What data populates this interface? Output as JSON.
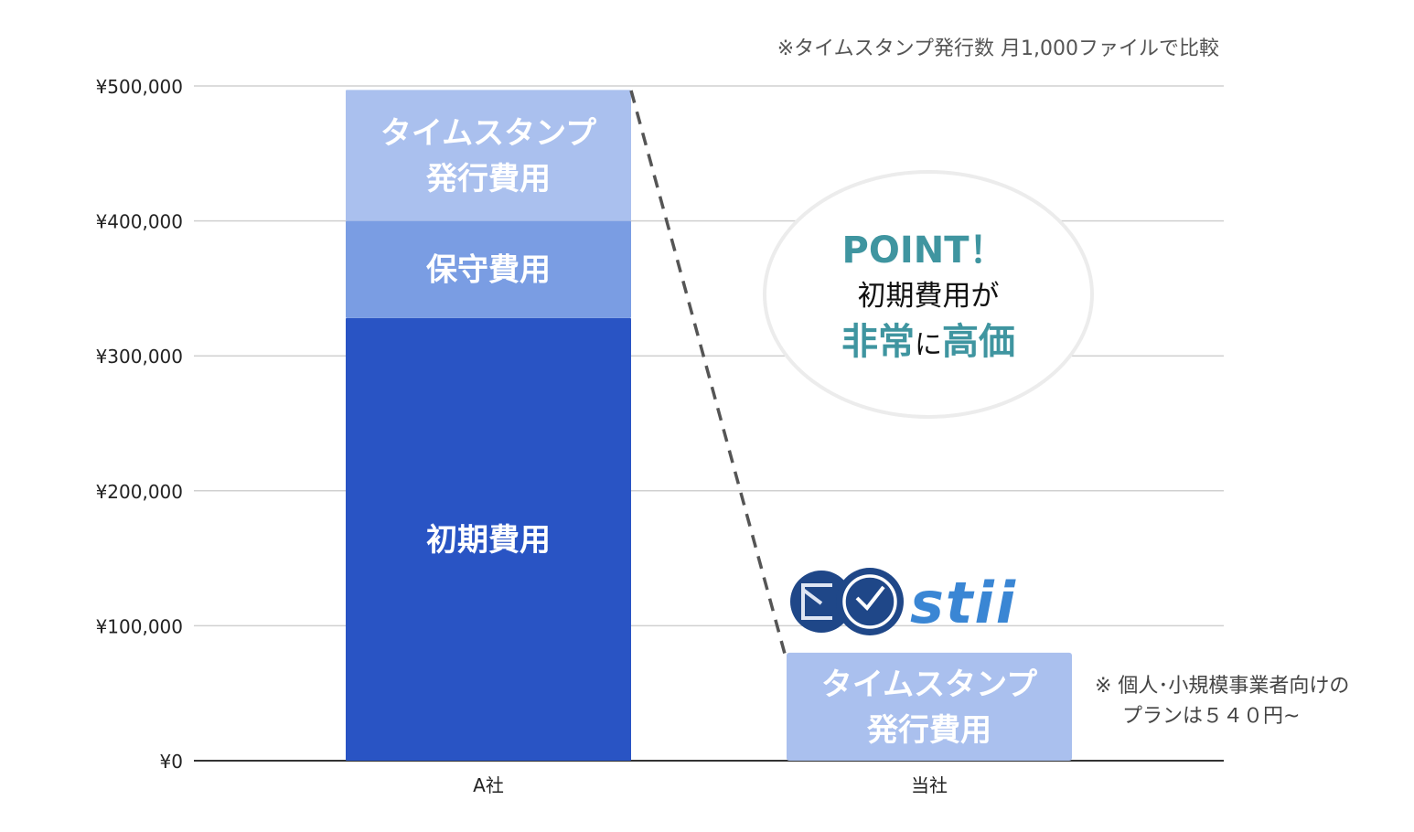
{
  "chart_data": {
    "type": "bar",
    "stacked": true,
    "categories": [
      "A社",
      "当社"
    ],
    "series": [
      {
        "name": "初期費用",
        "label_lines": [
          "初期費用"
        ],
        "values": [
          328000,
          0
        ],
        "color": "#2954c4"
      },
      {
        "name": "保守費用",
        "label_lines": [
          "保守費用"
        ],
        "values": [
          72000,
          0
        ],
        "color": "#7a9de3"
      },
      {
        "name": "タイムスタンプ発行費用",
        "label_lines": [
          "タイムスタンプ",
          "発行費用"
        ],
        "values": [
          97000,
          80000
        ],
        "color": "#aac0ee"
      }
    ],
    "yticks": [
      "¥0",
      "¥100,000",
      "¥200,000",
      "¥300,000",
      "¥400,000",
      "¥500,000"
    ],
    "ylim": [
      0,
      500000
    ],
    "grid": true,
    "legend": "none"
  },
  "annotations": {
    "top_note": "※タイムスタンプ発行数 月1,000ファイルで比較",
    "point_title": "POINT！",
    "point_line1": "初期費用が",
    "point_line2_a": "非常",
    "point_line2_b": "に",
    "point_line2_c": "高価",
    "side_note_line1": "※ 個人･小規模事業者向けの",
    "side_note_line2": "プランは５４０円~",
    "logo_text": "stii"
  },
  "colors": {
    "accent_teal": "#3f95a0",
    "logo_navy": "#1f4788",
    "logo_blue": "#3a86d4"
  }
}
